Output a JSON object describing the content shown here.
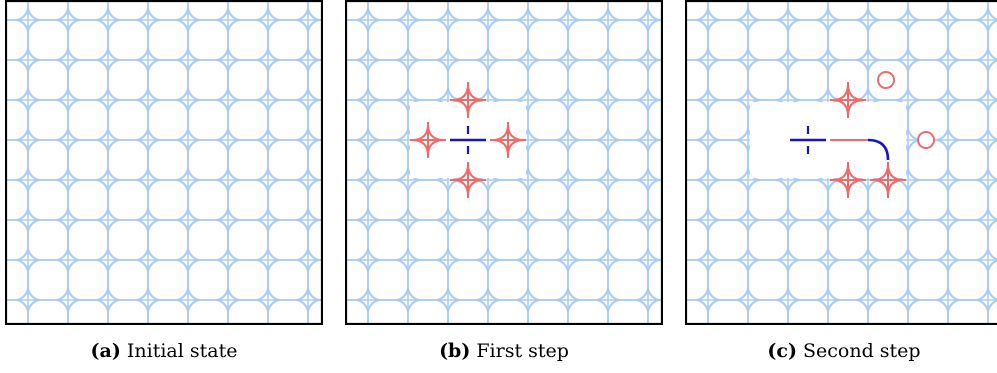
{
  "colors": {
    "lattice": "#a9cdf3",
    "active": "#f06a6a",
    "path": "#1414c8",
    "frame": "#000000"
  },
  "panels": [
    {
      "label": "(a)",
      "caption": "Initial state"
    },
    {
      "label": "(b)",
      "caption": "First step"
    },
    {
      "label": "(c)",
      "caption": "Second step"
    }
  ]
}
